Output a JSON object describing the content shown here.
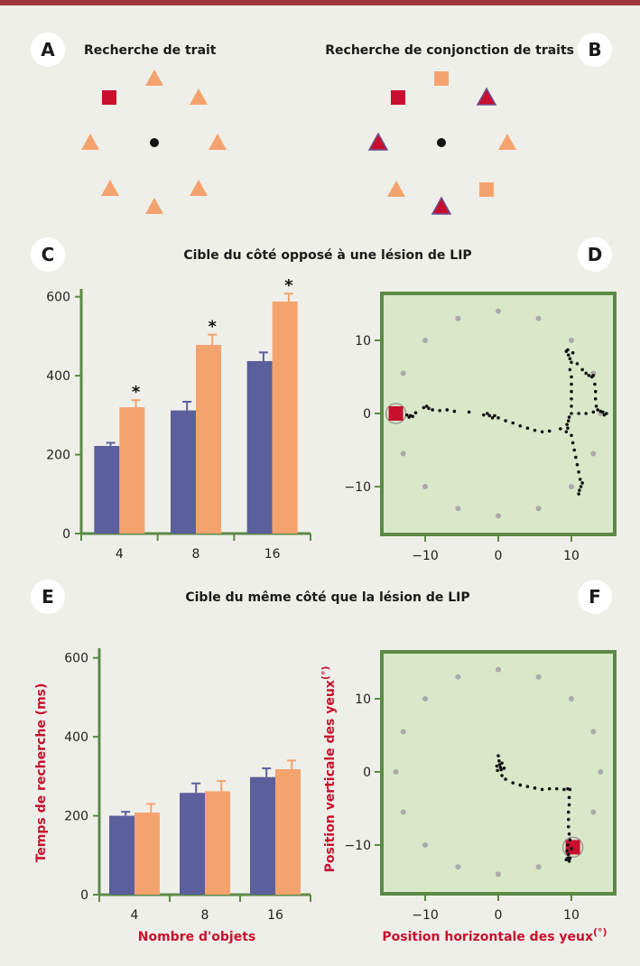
{
  "colors": {
    "topbar": "#a0343c",
    "salmon": "#f5a36e",
    "dark_red": "#c8102e",
    "purple_outline": "#6a5090",
    "blue_bar": "#5b5f9b",
    "green_bg": "#d9e8c8",
    "green_border": "#5c8a46",
    "grey_dot": "#aaaaaa"
  },
  "badges": {
    "a": "A",
    "b": "B",
    "c": "C",
    "d": "D",
    "e": "E",
    "f": "F"
  },
  "titles": {
    "a": "Recherche de trait",
    "b": "Recherche de conjonction de traits",
    "cd": "Cible du côté opposé à une lésion de LIP",
    "ef": "Cible du même côté que la lésion de LIP"
  },
  "stimuli": {
    "a": {
      "center_marker": "black-dot",
      "items": [
        {
          "shape": "square",
          "color": "dark-red"
        },
        {
          "shape": "triangle",
          "color": "salmon"
        },
        {
          "shape": "triangle",
          "color": "salmon"
        },
        {
          "shape": "triangle",
          "color": "salmon"
        },
        {
          "shape": "triangle",
          "color": "salmon"
        },
        {
          "shape": "triangle",
          "color": "salmon"
        },
        {
          "shape": "triangle",
          "color": "salmon"
        },
        {
          "shape": "triangle",
          "color": "salmon"
        }
      ]
    },
    "b": {
      "center_marker": "black-dot",
      "items": [
        {
          "shape": "square",
          "color": "dark-red"
        },
        {
          "shape": "square",
          "color": "salmon"
        },
        {
          "shape": "triangle",
          "color": "dark-red"
        },
        {
          "shape": "triangle",
          "color": "salmon"
        },
        {
          "shape": "square",
          "color": "salmon"
        },
        {
          "shape": "triangle",
          "color": "dark-red"
        },
        {
          "shape": "triangle",
          "color": "salmon"
        },
        {
          "shape": "triangle",
          "color": "dark-red"
        }
      ]
    }
  },
  "chart_data": [
    {
      "panel": "C",
      "type": "bar",
      "categories": [
        "4",
        "8",
        "16"
      ],
      "series": [
        {
          "color": "blue",
          "values": [
            222,
            312,
            437
          ],
          "errors": [
            8,
            22,
            22
          ]
        },
        {
          "color": "salmon",
          "values": [
            320,
            478,
            588
          ],
          "errors": [
            18,
            26,
            20
          ]
        }
      ],
      "significance": [
        "*",
        "*",
        "*"
      ],
      "ylim": [
        0,
        700
      ],
      "yticks": [
        "0",
        "200",
        "400",
        "600"
      ]
    },
    {
      "panel": "D",
      "type": "scatter",
      "xlim": [
        -16,
        16
      ],
      "ylim": [
        -16,
        16
      ],
      "xticks": [
        "−10",
        "0",
        "10"
      ],
      "yticks": [
        "10",
        "0",
        "−10"
      ],
      "target": [
        -14,
        0
      ],
      "item_positions": [
        [
          0,
          14
        ],
        [
          5.5,
          13
        ],
        [
          10,
          10
        ],
        [
          13,
          5.5
        ],
        [
          14,
          0
        ],
        [
          13,
          -5.5
        ],
        [
          10,
          -10
        ],
        [
          5.5,
          -13
        ],
        [
          0,
          -14
        ],
        [
          -5.5,
          -13
        ],
        [
          -10,
          -10
        ],
        [
          -13,
          -5.5
        ],
        [
          -14,
          0
        ],
        [
          -13,
          5.5
        ],
        [
          -10,
          10
        ],
        [
          -5.5,
          13
        ]
      ],
      "eye_trace": [
        [
          -12.5,
          -0.2
        ],
        [
          -12.2,
          -0.5
        ],
        [
          -12,
          -0.3
        ],
        [
          -11.7,
          -0.4
        ],
        [
          -11.3,
          0.1
        ],
        [
          -10.2,
          0.8
        ],
        [
          -9.8,
          1
        ],
        [
          -9.5,
          0.7
        ],
        [
          -9,
          0.5
        ],
        [
          -8,
          0.4
        ],
        [
          -7,
          0.5
        ],
        [
          -6,
          0.3
        ],
        [
          -4,
          0.2
        ],
        [
          -2,
          -0.2
        ],
        [
          -1.5,
          0
        ],
        [
          -1.2,
          -0.3
        ],
        [
          -0.8,
          -0.6
        ],
        [
          -0.5,
          -0.3
        ],
        [
          0,
          -0.6
        ],
        [
          1,
          -1
        ],
        [
          2,
          -1.3
        ],
        [
          3,
          -1.7
        ],
        [
          4,
          -2
        ],
        [
          5,
          -2.3
        ],
        [
          6,
          -2.5
        ],
        [
          7,
          -2.4
        ],
        [
          8.5,
          -2.1
        ],
        [
          9.3,
          -2.5
        ],
        [
          9.5,
          -2
        ],
        [
          9.4,
          -1.5
        ],
        [
          9.6,
          -1
        ],
        [
          9.7,
          -0.5
        ],
        [
          10,
          0
        ],
        [
          11,
          0
        ],
        [
          12,
          0
        ],
        [
          13,
          0.2
        ],
        [
          14,
          0.3
        ],
        [
          14.5,
          -0.2
        ],
        [
          14.8,
          0
        ],
        [
          14.3,
          0.2
        ],
        [
          9.3,
          8.5
        ],
        [
          9.6,
          8
        ],
        [
          9.8,
          7.5
        ],
        [
          10,
          7
        ],
        [
          10.2,
          8.3
        ],
        [
          9.5,
          8.7
        ],
        [
          9.8,
          6
        ],
        [
          10,
          5
        ],
        [
          10,
          4
        ],
        [
          10,
          3
        ],
        [
          10,
          2
        ],
        [
          10,
          1
        ],
        [
          10,
          -3
        ],
        [
          10.2,
          -4
        ],
        [
          10.4,
          -5
        ],
        [
          10.6,
          -6
        ],
        [
          10.8,
          -7
        ],
        [
          11,
          -8
        ],
        [
          11.2,
          -9
        ],
        [
          11.3,
          -10
        ],
        [
          11.1,
          -10.5
        ],
        [
          11,
          -11
        ],
        [
          11.5,
          -9.5
        ],
        [
          10.8,
          6.8
        ],
        [
          11.5,
          6
        ],
        [
          12,
          5.5
        ],
        [
          12.4,
          5.2
        ],
        [
          12.8,
          5
        ],
        [
          13,
          5.2
        ],
        [
          13.2,
          4
        ],
        [
          13.3,
          3
        ],
        [
          13.3,
          2
        ],
        [
          13.4,
          1
        ],
        [
          13.6,
          0.5
        ]
      ]
    },
    {
      "panel": "E",
      "type": "bar",
      "categories": [
        "4",
        "8",
        "16"
      ],
      "series": [
        {
          "color": "blue",
          "values": [
            200,
            258,
            298
          ],
          "errors": [
            10,
            24,
            22
          ]
        },
        {
          "color": "salmon",
          "values": [
            208,
            262,
            318
          ],
          "errors": [
            22,
            26,
            22
          ]
        }
      ],
      "ylim": [
        0,
        700
      ],
      "yticks": [
        "0",
        "200",
        "400",
        "600"
      ],
      "xlabel": "Nombre d'objets",
      "ylabel": "Temps de recherche (ms)"
    },
    {
      "panel": "F",
      "type": "scatter",
      "xlim": [
        -16,
        16
      ],
      "ylim": [
        -16,
        16
      ],
      "xticks": [
        "−10",
        "0",
        "10"
      ],
      "yticks": [
        "10",
        "0",
        "−10"
      ],
      "xlabel": "Position horizontale des yeux",
      "xlabel_unit": "(°)",
      "ylabel": "Position verticale des yeux",
      "ylabel_unit": "(°)",
      "target": [
        10.2,
        -10.3
      ],
      "item_positions": [
        [
          0,
          14
        ],
        [
          5.5,
          13
        ],
        [
          10,
          10
        ],
        [
          13,
          5.5
        ],
        [
          14,
          0
        ],
        [
          13,
          -5.5
        ],
        [
          10,
          -10
        ],
        [
          5.5,
          -13
        ],
        [
          0,
          -14
        ],
        [
          -5.5,
          -13
        ],
        [
          -10,
          -10
        ],
        [
          -13,
          -5.5
        ],
        [
          -14,
          0
        ],
        [
          -13,
          5.5
        ],
        [
          -10,
          10
        ],
        [
          -5.5,
          13
        ]
      ],
      "eye_trace": [
        [
          0,
          2.2
        ],
        [
          0.1,
          1.5
        ],
        [
          0.2,
          1
        ],
        [
          -0.2,
          0.8
        ],
        [
          0.3,
          0.6
        ],
        [
          0.4,
          0.3
        ],
        [
          -0.1,
          0.2
        ],
        [
          0.5,
          1.2
        ],
        [
          0.8,
          0.5
        ],
        [
          0.5,
          -0.5
        ],
        [
          1,
          -1
        ],
        [
          2,
          -1.5
        ],
        [
          3,
          -1.8
        ],
        [
          4,
          -2
        ],
        [
          5,
          -2.2
        ],
        [
          6,
          -2.4
        ],
        [
          7,
          -2.3
        ],
        [
          8,
          -2.3
        ],
        [
          9,
          -2.4
        ],
        [
          9.5,
          -2.3
        ],
        [
          9.8,
          -2.4
        ],
        [
          9.7,
          -3.5
        ],
        [
          9.7,
          -4.5
        ],
        [
          9.6,
          -5.5
        ],
        [
          9.6,
          -6.5
        ],
        [
          9.6,
          -7.5
        ],
        [
          9.7,
          -8.5
        ],
        [
          9.8,
          -9.3
        ],
        [
          9.5,
          -10
        ],
        [
          9.4,
          -10.8
        ],
        [
          9.6,
          -11.3
        ],
        [
          9.8,
          -11.8
        ],
        [
          9.7,
          -12.2
        ],
        [
          9.5,
          -11.8
        ],
        [
          10,
          -10.5
        ],
        [
          9.3,
          -12
        ]
      ]
    }
  ]
}
